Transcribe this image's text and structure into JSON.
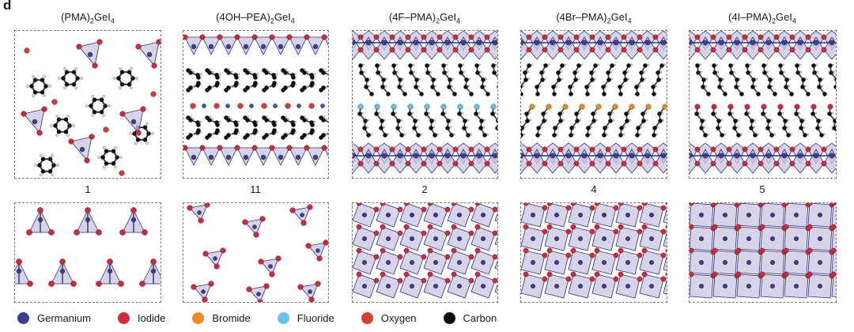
{
  "panel_label": "d",
  "columns": [
    {
      "id": "pma",
      "title_main": "(PMA)",
      "title_sub1": "2",
      "title_mid": "GeI",
      "title_sub2": "4",
      "number": "1"
    },
    {
      "id": "4oh-pea",
      "title_main": "(4OH–PEA)",
      "title_sub1": "2",
      "title_mid": "GeI",
      "title_sub2": "4",
      "number": "11"
    },
    {
      "id": "4f-pma",
      "title_main": "(4F–PMA)",
      "title_sub1": "2",
      "title_mid": "GeI",
      "title_sub2": "4",
      "number": "2"
    },
    {
      "id": "4br-pma",
      "title_main": "(4Br–PMA)",
      "title_sub1": "2",
      "title_mid": "GeI",
      "title_sub2": "4",
      "number": "4"
    },
    {
      "id": "4i-pma",
      "title_main": "(4I–PMA)",
      "title_sub1": "2",
      "title_mid": "GeI",
      "title_sub2": "4",
      "number": "5"
    }
  ],
  "legend": [
    {
      "label": "Germanium",
      "color": "#3b3e8c"
    },
    {
      "label": "Iodide",
      "color": "#d1283a"
    },
    {
      "label": "Bromide",
      "color": "#ef8a23"
    },
    {
      "label": "Fluoride",
      "color": "#63c2ea"
    },
    {
      "label": "Oxygen",
      "color": "#d83a34"
    },
    {
      "label": "Carbon",
      "color": "#0d0d0d"
    }
  ],
  "colors": {
    "octahedron_fill": "#c9c6e2",
    "bond": "#2b2f7a",
    "hydrogen": "#eeeeee",
    "nitrogen": "#3b55b0"
  }
}
